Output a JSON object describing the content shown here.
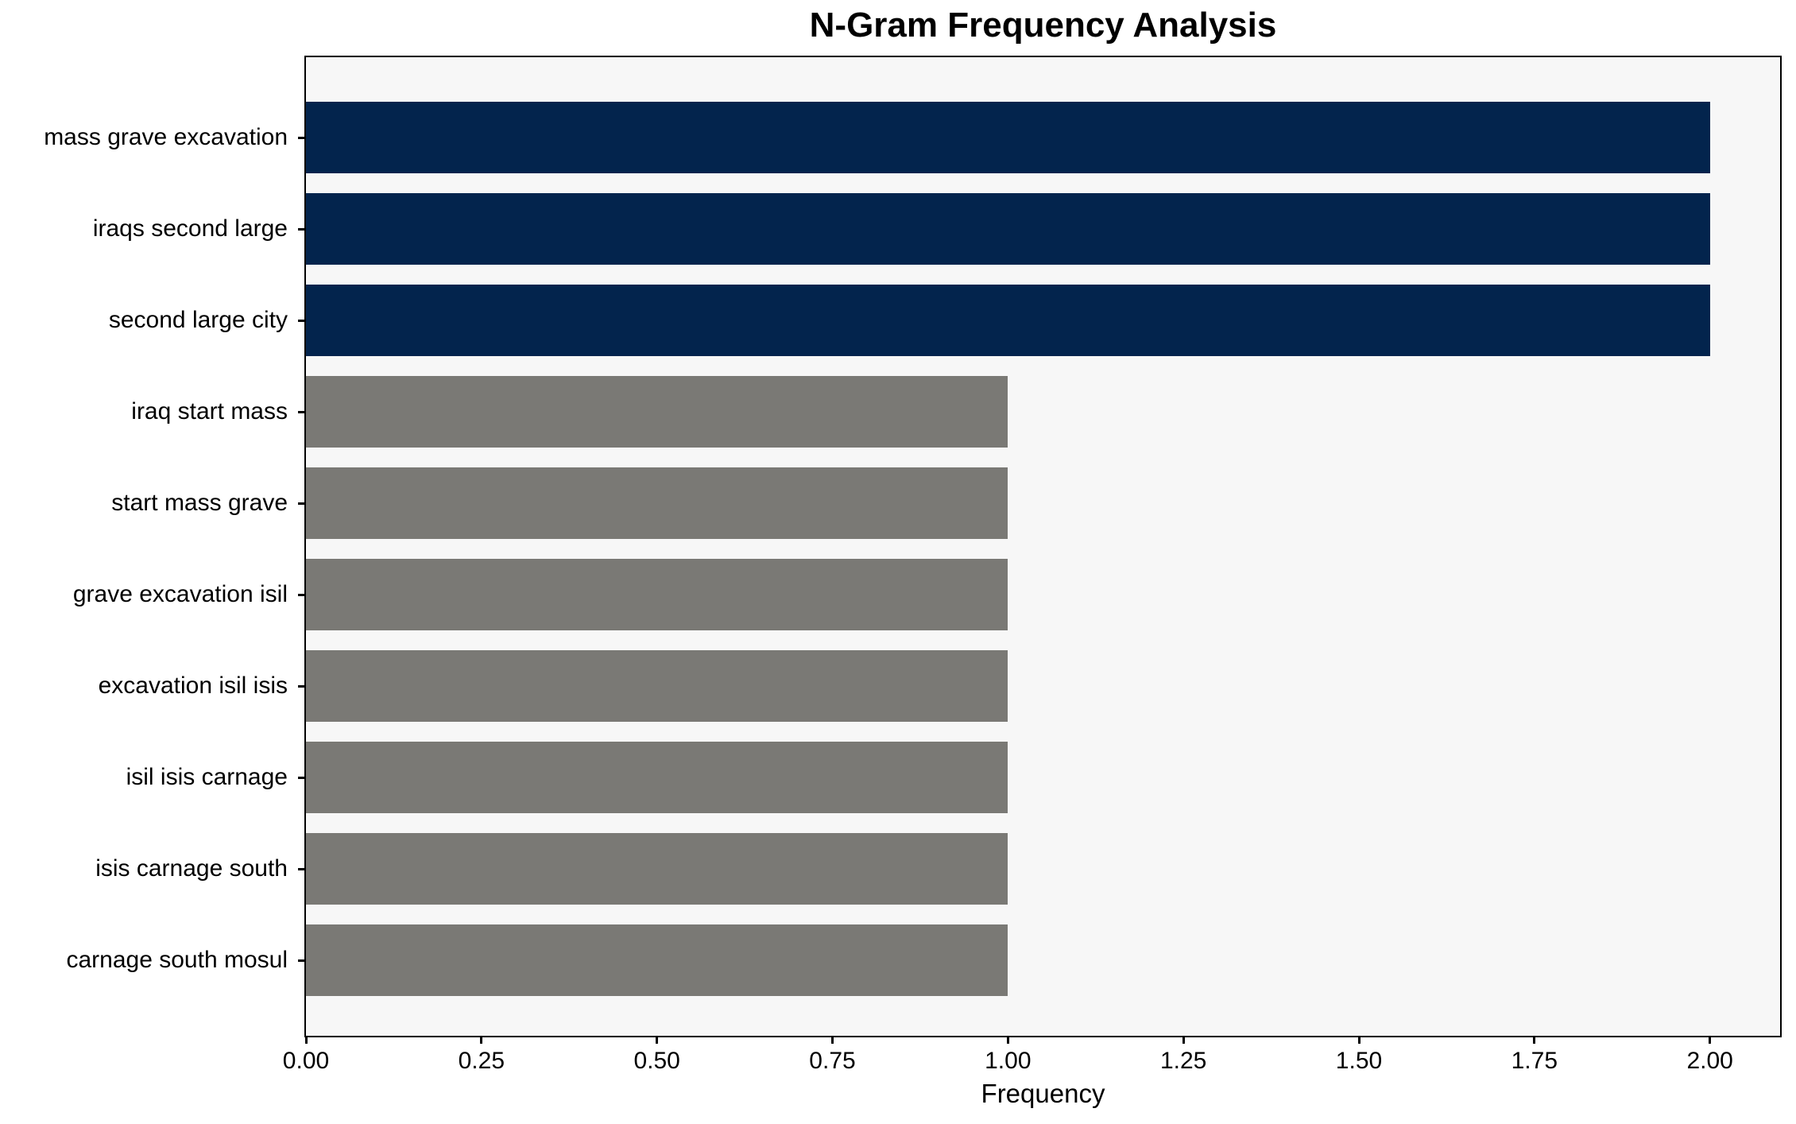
{
  "chart_data": {
    "type": "bar",
    "orientation": "horizontal",
    "title": "N-Gram Frequency Analysis",
    "xlabel": "Frequency",
    "ylabel": "",
    "categories": [
      "mass grave excavation",
      "iraqs second large",
      "second large city",
      "iraq start mass",
      "start mass grave",
      "grave excavation isil",
      "excavation isil isis",
      "isil isis carnage",
      "isis carnage south",
      "carnage south mosul"
    ],
    "values": [
      2,
      2,
      2,
      1,
      1,
      1,
      1,
      1,
      1,
      1
    ],
    "bar_colors": [
      "#03244d",
      "#03244d",
      "#03244d",
      "#7a7975",
      "#7a7975",
      "#7a7975",
      "#7a7975",
      "#7a7975",
      "#7a7975",
      "#7a7975"
    ],
    "xlim": [
      0,
      2.1
    ],
    "xtick_labels": [
      "0.00",
      "0.25",
      "0.50",
      "0.75",
      "1.00",
      "1.25",
      "1.50",
      "1.75",
      "2.00"
    ],
    "xtick_values": [
      0,
      0.25,
      0.5,
      0.75,
      1.0,
      1.25,
      1.5,
      1.75,
      2.0
    ],
    "grid": false,
    "legend": null,
    "colors": {
      "highlight_bar": "#03244d",
      "default_bar": "#7a7975",
      "plot_background": "#f7f7f7",
      "figure_background": "#ffffff",
      "spine": "#000000",
      "text": "#000000"
    }
  }
}
